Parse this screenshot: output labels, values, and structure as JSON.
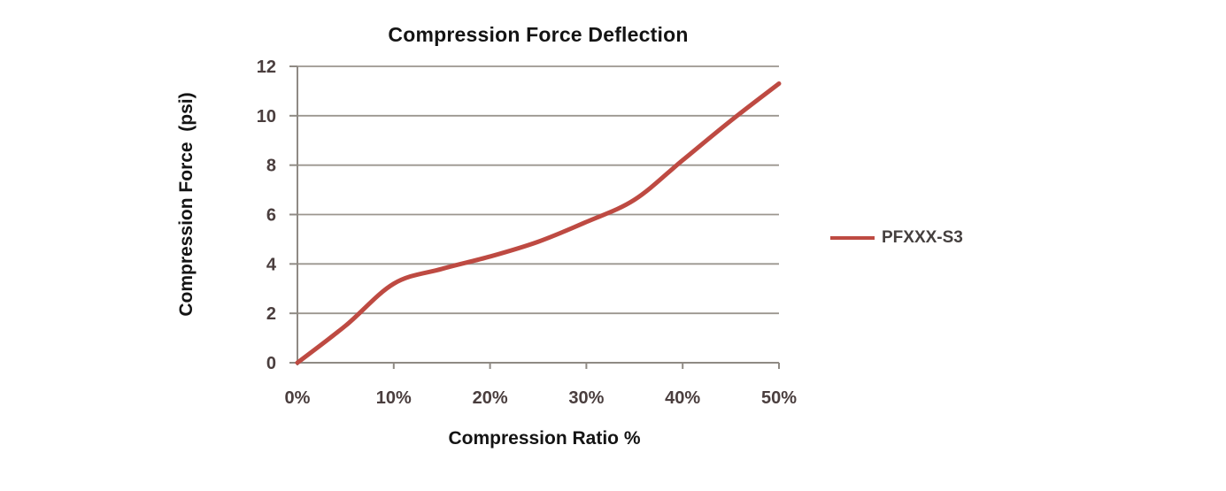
{
  "chart_data": {
    "type": "line",
    "title": "Compression Force Deflection",
    "xlabel": "Compression Ratio %",
    "ylabel": "Compression Force  (psi)",
    "xlim": [
      0,
      50
    ],
    "ylim": [
      0,
      12
    ],
    "xticks": [
      0,
      10,
      20,
      30,
      40,
      50
    ],
    "xtick_labels": [
      "0%",
      "10%",
      "20%",
      "30%",
      "40%",
      "50%"
    ],
    "yticks": [
      0,
      2,
      4,
      6,
      8,
      10,
      12
    ],
    "ytick_labels": [
      "0",
      "2",
      "4",
      "6",
      "8",
      "10",
      "12"
    ],
    "grid": "horizontal-only",
    "legend_position": "right-middle",
    "line_style": "smooth",
    "series": [
      {
        "name": "PFXXX-S3",
        "color": "#BE4A42",
        "line_width": 5,
        "x": [
          0,
          5,
          10,
          15,
          20,
          25,
          30,
          35,
          40,
          45,
          50
        ],
        "y": [
          0,
          1.5,
          3.2,
          3.8,
          4.3,
          4.9,
          5.7,
          6.6,
          8.2,
          9.8,
          11.3
        ]
      }
    ]
  },
  "colors": {
    "background": "#ffffff",
    "gridline": "#9b968f",
    "axis_line": "#8f8a84",
    "tick_label": "#4a3e3e",
    "title_text": "#141414",
    "axis_title_text": "#141414",
    "legend_text": "#45403f"
  }
}
